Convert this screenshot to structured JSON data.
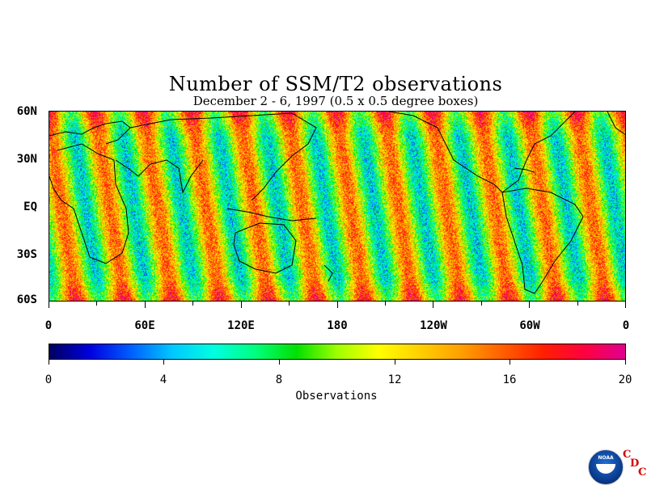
{
  "title": "Number of SSM/T2 observations",
  "subtitle": "December 2 - 6, 1997 (0.5 x 0.5 degree boxes)",
  "map": {
    "lat_labels": [
      "60N",
      "30N",
      "EQ",
      "30S",
      "60S"
    ],
    "lon_labels": [
      "0",
      "60E",
      "120E",
      "180",
      "120W",
      "60W",
      "0"
    ],
    "lon_range": [
      0,
      360
    ],
    "lat_range": [
      -60,
      60
    ]
  },
  "colorbar": {
    "min": 0,
    "max": 20,
    "tick_labels": [
      "0",
      "4",
      "8",
      "12",
      "16",
      "20"
    ],
    "label": "Observations",
    "colors": [
      "#000060",
      "#0000e0",
      "#0060ff",
      "#00c8ff",
      "#00ffe0",
      "#00ff80",
      "#00e000",
      "#a0ff00",
      "#ffff00",
      "#ffd000",
      "#ffa000",
      "#ff6000",
      "#ff2000",
      "#ff0040",
      "#e00090"
    ]
  },
  "logo": {
    "text": "NOAA",
    "org_letters": [
      "C",
      "D",
      "C"
    ]
  }
}
